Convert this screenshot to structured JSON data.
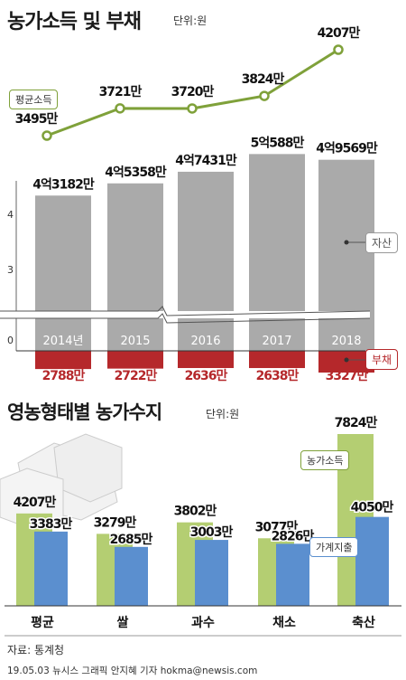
{
  "header": {
    "title": "농가소득 및 부채",
    "unit": "단위:원"
  },
  "chart_data": [
    {
      "type": "line",
      "name": "income_line",
      "series_label": "평균소득",
      "categories": [
        "2014년",
        "2015",
        "2016",
        "2017",
        "2018"
      ],
      "labels": [
        "3495만",
        "3721만",
        "3720만",
        "3824만",
        "4207만"
      ],
      "values": [
        3495,
        3721,
        3720,
        3824,
        4207
      ],
      "color": "#7fa13a"
    },
    {
      "type": "bar",
      "name": "assets_debt",
      "categories": [
        "2014년",
        "2015",
        "2016",
        "2017",
        "2018"
      ],
      "asset_labels": [
        "4억3182만",
        "4억5358만",
        "4억7431만",
        "5억588만",
        "4억9569만"
      ],
      "assets": [
        43182,
        45358,
        47431,
        50588,
        49569
      ],
      "debt_labels": [
        "2788만",
        "2722만",
        "2636만",
        "2638만",
        "3327만"
      ],
      "debt": [
        2788,
        2722,
        2636,
        2638,
        3327
      ],
      "y_ticks": [
        "4",
        "3",
        "0"
      ],
      "legend": {
        "assets": "자산",
        "debt": "부채"
      },
      "asset_color": "#aaaaaa",
      "debt_color": "#b5282b"
    },
    {
      "type": "bar",
      "name": "farm_type",
      "title": "영농형태별 농가수지",
      "unit": "단위:원",
      "categories": [
        "평균",
        "쌀",
        "과수",
        "채소",
        "축산"
      ],
      "series": [
        {
          "name": "농가소득",
          "values": [
            4207,
            3279,
            3802,
            3077,
            7824
          ],
          "labels": [
            "4207만",
            "3279만",
            "3802만",
            "3077만",
            "7824만"
          ],
          "color": "#b4ce72"
        },
        {
          "name": "가계지출",
          "values": [
            3383,
            2685,
            3003,
            2826,
            4050
          ],
          "labels": [
            "3383만",
            "2685만",
            "3003만",
            "2826만",
            "4050만"
          ],
          "color": "#5b8fcf"
        }
      ]
    }
  ],
  "footer": {
    "source": "자료: 통계청",
    "credit": "19.05.03 뉴시스 그래픽 안지혜 기자 hokma@newsis.com"
  }
}
